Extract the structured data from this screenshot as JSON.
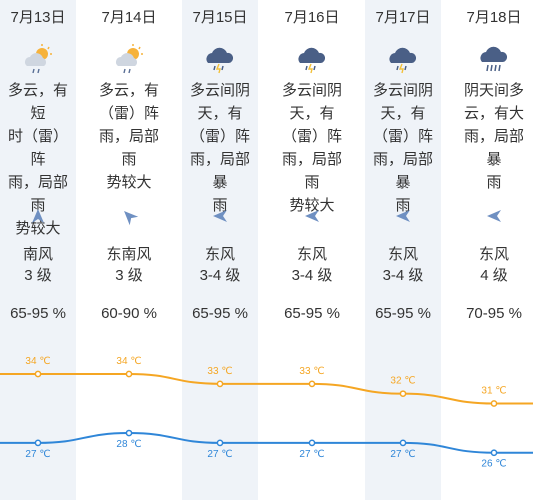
{
  "days": [
    {
      "date": "7月13日",
      "icon": "partly-cloudy-rain-icon",
      "desc": [
        "多云，有短",
        "时（雷）阵",
        "雨，局部雨",
        "势较大"
      ],
      "wind_dir": "南风",
      "wind_level": "3 级",
      "humidity": "65-95 %",
      "high": "34 ℃",
      "low": "27 ℃"
    },
    {
      "date": "7月14日",
      "icon": "partly-cloudy-rain-icon",
      "desc": [
        "多云，有",
        "（雷）阵",
        "雨，局部雨",
        "势较大"
      ],
      "wind_dir": "东南风",
      "wind_level": "3 级",
      "humidity": "60-90 %",
      "high": "34 ℃",
      "low": "28 ℃"
    },
    {
      "date": "7月15日",
      "icon": "thunder-rain-icon",
      "desc": [
        "多云间阴",
        "天，有",
        "（雷）阵",
        "雨，局部暴",
        "雨"
      ],
      "wind_dir": "东风",
      "wind_level": "3-4 级",
      "humidity": "65-95 %",
      "high": "33 ℃",
      "low": "27 ℃"
    },
    {
      "date": "7月16日",
      "icon": "thunder-rain-icon",
      "desc": [
        "多云间阴",
        "天，有",
        "（雷）阵",
        "雨，局部雨",
        "势较大"
      ],
      "wind_dir": "东风",
      "wind_level": "3-4 级",
      "humidity": "65-95 %",
      "high": "33 ℃",
      "low": "27 ℃"
    },
    {
      "date": "7月17日",
      "icon": "thunder-rain-icon",
      "desc": [
        "多云间阴",
        "天，有",
        "（雷）阵",
        "雨，局部暴",
        "雨"
      ],
      "wind_dir": "东风",
      "wind_level": "3-4 级",
      "humidity": "65-95 %",
      "high": "32 ℃",
      "low": "27 ℃"
    },
    {
      "date": "7月18日",
      "icon": "heavy-rain-icon",
      "desc": [
        "阴天间多",
        "云，有大",
        "雨，局部暴",
        "雨"
      ],
      "wind_dir": "东风",
      "wind_level": "4 级",
      "humidity": "70-95 %",
      "high": "31 ℃",
      "low": "26 ℃"
    }
  ],
  "chart_data": {
    "type": "line",
    "categories": [
      "7月13日",
      "7月14日",
      "7月15日",
      "7月16日",
      "7月17日",
      "7月18日"
    ],
    "series": [
      {
        "values": [
          34,
          34,
          33,
          33,
          32,
          31
        ],
        "color": "#f5a623"
      },
      {
        "values": [
          27,
          28,
          27,
          27,
          27,
          26
        ],
        "color": "#2f86d8"
      }
    ]
  },
  "colors": {
    "high": "#f5a623",
    "low": "#2f86d8",
    "shade": "#eff3f8",
    "arrow": "#6f90c2",
    "cloud": "#4a5f86"
  }
}
